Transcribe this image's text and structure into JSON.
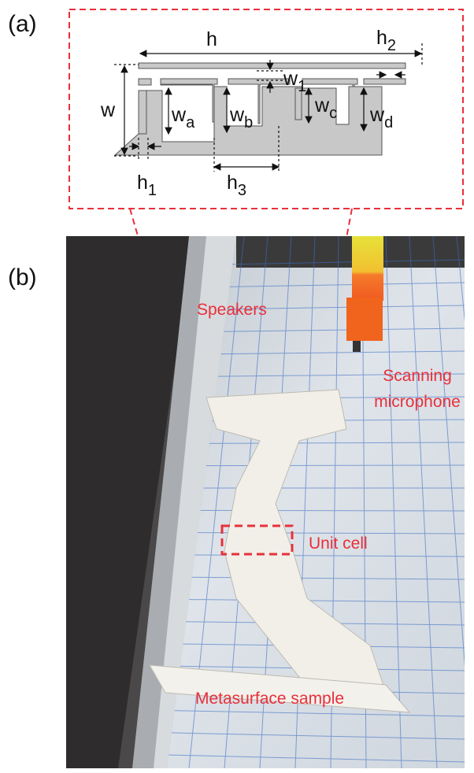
{
  "panels": [
    {
      "label": "(a)"
    },
    {
      "label": "(b)"
    }
  ],
  "diagram": {
    "dimensions": [
      {
        "base": "h"
      },
      {
        "base": "h",
        "sub": "2"
      },
      {
        "base": "w"
      },
      {
        "base": "w",
        "sub": "1"
      },
      {
        "base": "w",
        "sub": "a"
      },
      {
        "base": "w",
        "sub": "b"
      },
      {
        "base": "w",
        "sub": "c"
      },
      {
        "base": "w",
        "sub": "d"
      },
      {
        "base": "h",
        "sub": "1"
      },
      {
        "base": "h",
        "sub": "3"
      }
    ]
  },
  "photo": {
    "annotations": [
      {
        "lines": [
          "Speakers"
        ]
      },
      {
        "lines": [
          "Scanning",
          "microphone"
        ]
      },
      {
        "lines": [
          "Unit cell"
        ]
      },
      {
        "lines": [
          "Metasurface sample"
        ]
      }
    ]
  }
}
